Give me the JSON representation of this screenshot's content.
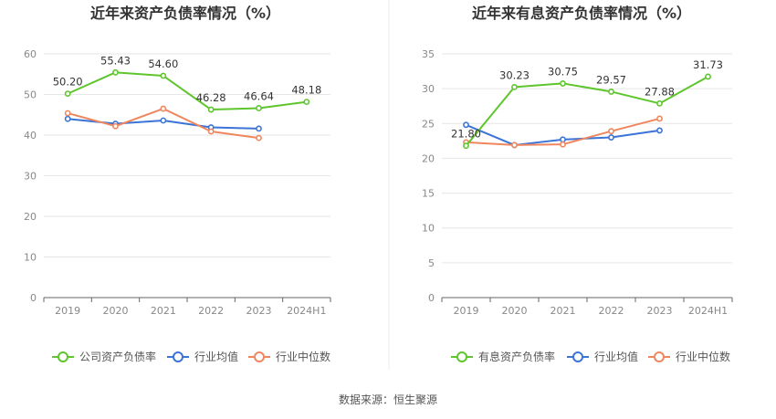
{
  "source_text": "数据来源：恒生聚源",
  "colors": {
    "company": "#5ec62c",
    "industry_avg": "#3b74d6",
    "industry_median": "#f0865e",
    "axis": "#666666",
    "grid": "#e6e6e6"
  },
  "chart_data": [
    {
      "type": "line",
      "title": "近年来资产负债率情况（%）",
      "categories": [
        "2019",
        "2020",
        "2021",
        "2022",
        "2023",
        "2024H1"
      ],
      "ylim": [
        0,
        60
      ],
      "yticks": [
        "0",
        "10",
        "20",
        "30",
        "40",
        "50",
        "60"
      ],
      "grid": true,
      "legend_position": "bottom",
      "series": [
        {
          "name": "公司资产负债率",
          "color_key": "company",
          "values": [
            50.2,
            55.43,
            54.6,
            46.28,
            46.64,
            48.18
          ],
          "labels": [
            "50.20",
            "55.43",
            "54.60",
            "46.28",
            "46.64",
            "48.18"
          ]
        },
        {
          "name": "行业均值",
          "color_key": "industry_avg",
          "values": [
            44.0,
            42.8,
            43.6,
            41.9,
            41.6,
            null
          ]
        },
        {
          "name": "行业中位数",
          "color_key": "industry_median",
          "values": [
            45.4,
            42.2,
            46.5,
            40.9,
            39.3,
            null
          ]
        }
      ]
    },
    {
      "type": "line",
      "title": "近年来有息资产负债率情况（%）",
      "categories": [
        "2019",
        "2020",
        "2021",
        "2022",
        "2023",
        "2024H1"
      ],
      "ylim": [
        0,
        35
      ],
      "yticks": [
        "0",
        "5",
        "10",
        "15",
        "20",
        "25",
        "30",
        "35"
      ],
      "grid": true,
      "legend_position": "bottom",
      "series": [
        {
          "name": "有息资产负债率",
          "color_key": "company",
          "values": [
            21.8,
            30.23,
            30.75,
            29.57,
            27.88,
            31.73
          ],
          "labels": [
            "21.80",
            "30.23",
            "30.75",
            "29.57",
            "27.88",
            "31.73"
          ]
        },
        {
          "name": "行业均值",
          "color_key": "industry_avg",
          "values": [
            24.8,
            21.9,
            22.7,
            23.0,
            24.0,
            null
          ]
        },
        {
          "name": "行业中位数",
          "color_key": "industry_median",
          "values": [
            22.3,
            21.9,
            22.0,
            23.9,
            25.7,
            null
          ]
        }
      ]
    }
  ]
}
